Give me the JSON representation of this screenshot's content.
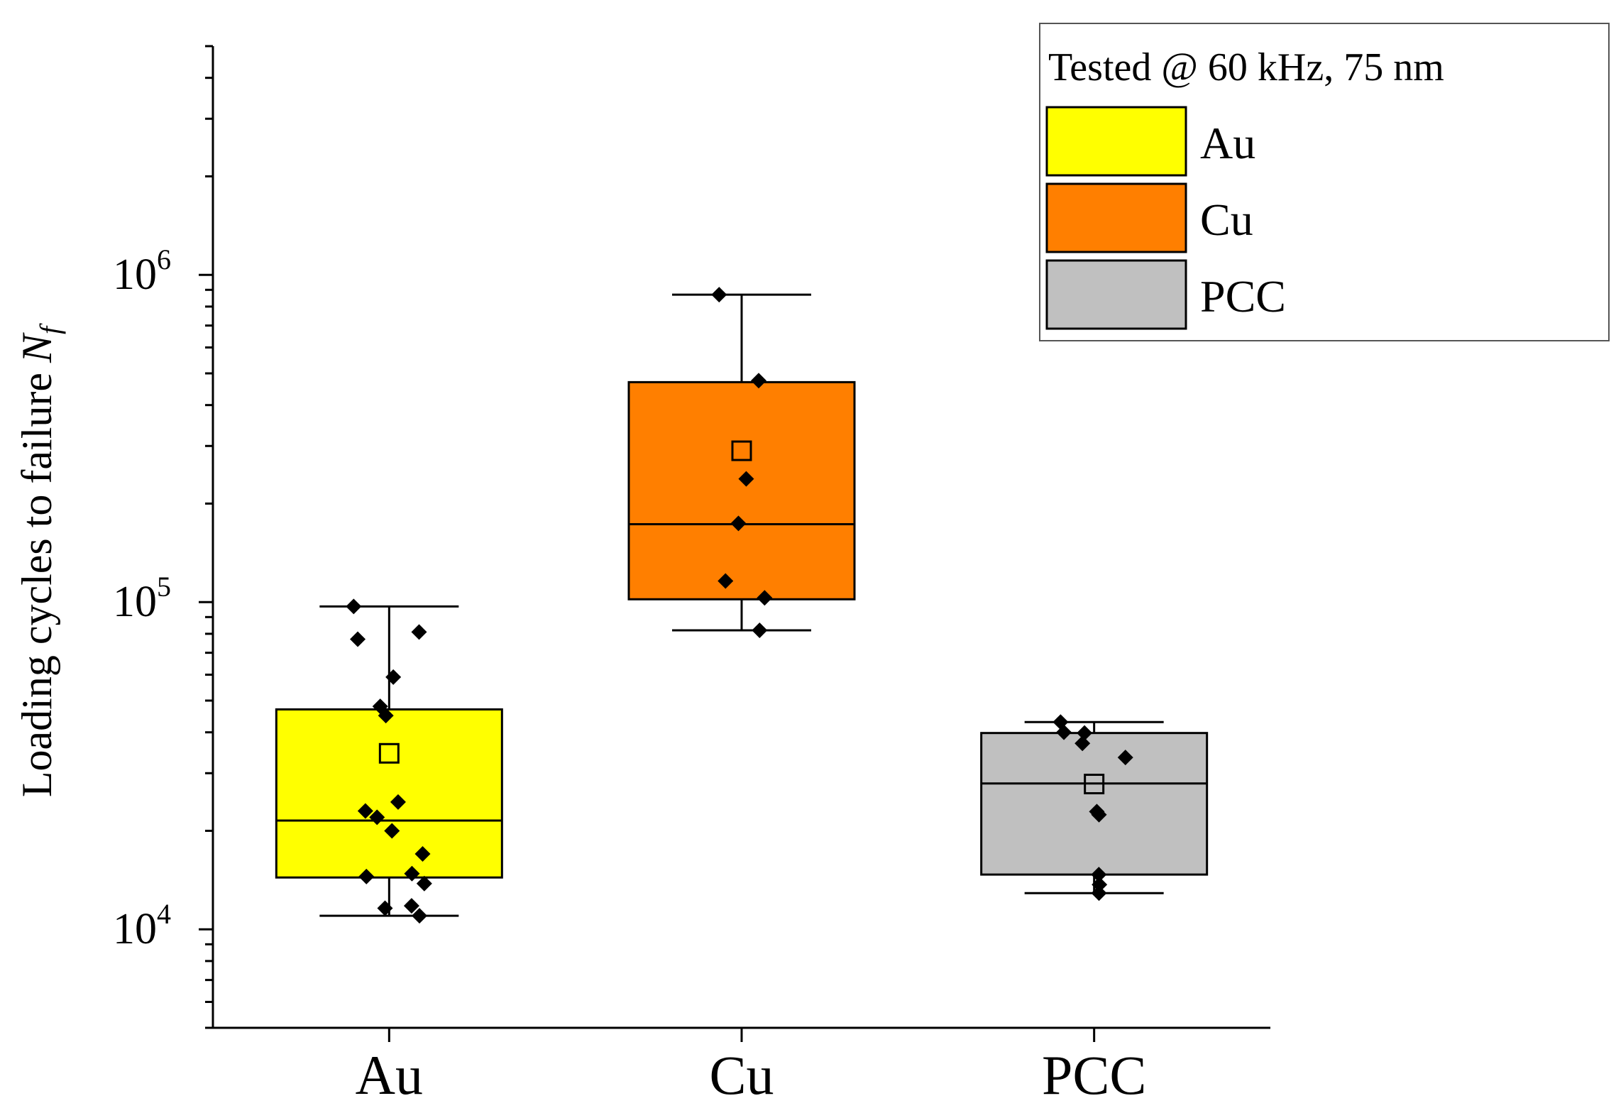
{
  "chart_data": {
    "type": "box",
    "title": "",
    "xlabel": "",
    "ylabel": "Loading cycles to failure",
    "ylabel_symbol": "N",
    "ylabel_subscript": "f",
    "yscale": "log",
    "ylim": [
      5000,
      5000000
    ],
    "ytick_base": "10",
    "ytick_exponents": [
      "4",
      "5",
      "6"
    ],
    "categories": [
      "Au",
      "Cu",
      "PCC"
    ],
    "legend": {
      "title": "Tested @ 60 kHz, 75 nm",
      "position": "top-right",
      "entries": [
        "Au",
        "Cu",
        "PCC"
      ]
    },
    "series": [
      {
        "name": "Au",
        "color": "#ffff00",
        "whisker_low": 11000,
        "q1": 14400,
        "median": 21500,
        "q3": 47000,
        "whisker_high": 97000,
        "mean": 34500,
        "points": [
          97000,
          81000,
          77000,
          59000,
          48000,
          45000,
          24500,
          23000,
          22000,
          20000,
          17000,
          14800,
          14500,
          13800,
          11800,
          11600,
          11000
        ]
      },
      {
        "name": "Cu",
        "color": "#ff7f00",
        "whisker_low": 82000,
        "q1": 102000,
        "median": 173000,
        "q3": 470000,
        "whisker_high": 870000,
        "mean": 290000,
        "points": [
          870000,
          475000,
          238000,
          174000,
          116000,
          103000,
          82000
        ]
      },
      {
        "name": "PCC",
        "color": "#c0c0c0",
        "whisker_low": 12900,
        "q1": 14700,
        "median": 27900,
        "q3": 39800,
        "whisker_high": 43000,
        "mean": 27800,
        "points": [
          43000,
          40000,
          39800,
          37000,
          33500,
          22900,
          22400,
          14700,
          13700,
          12900
        ]
      }
    ]
  }
}
